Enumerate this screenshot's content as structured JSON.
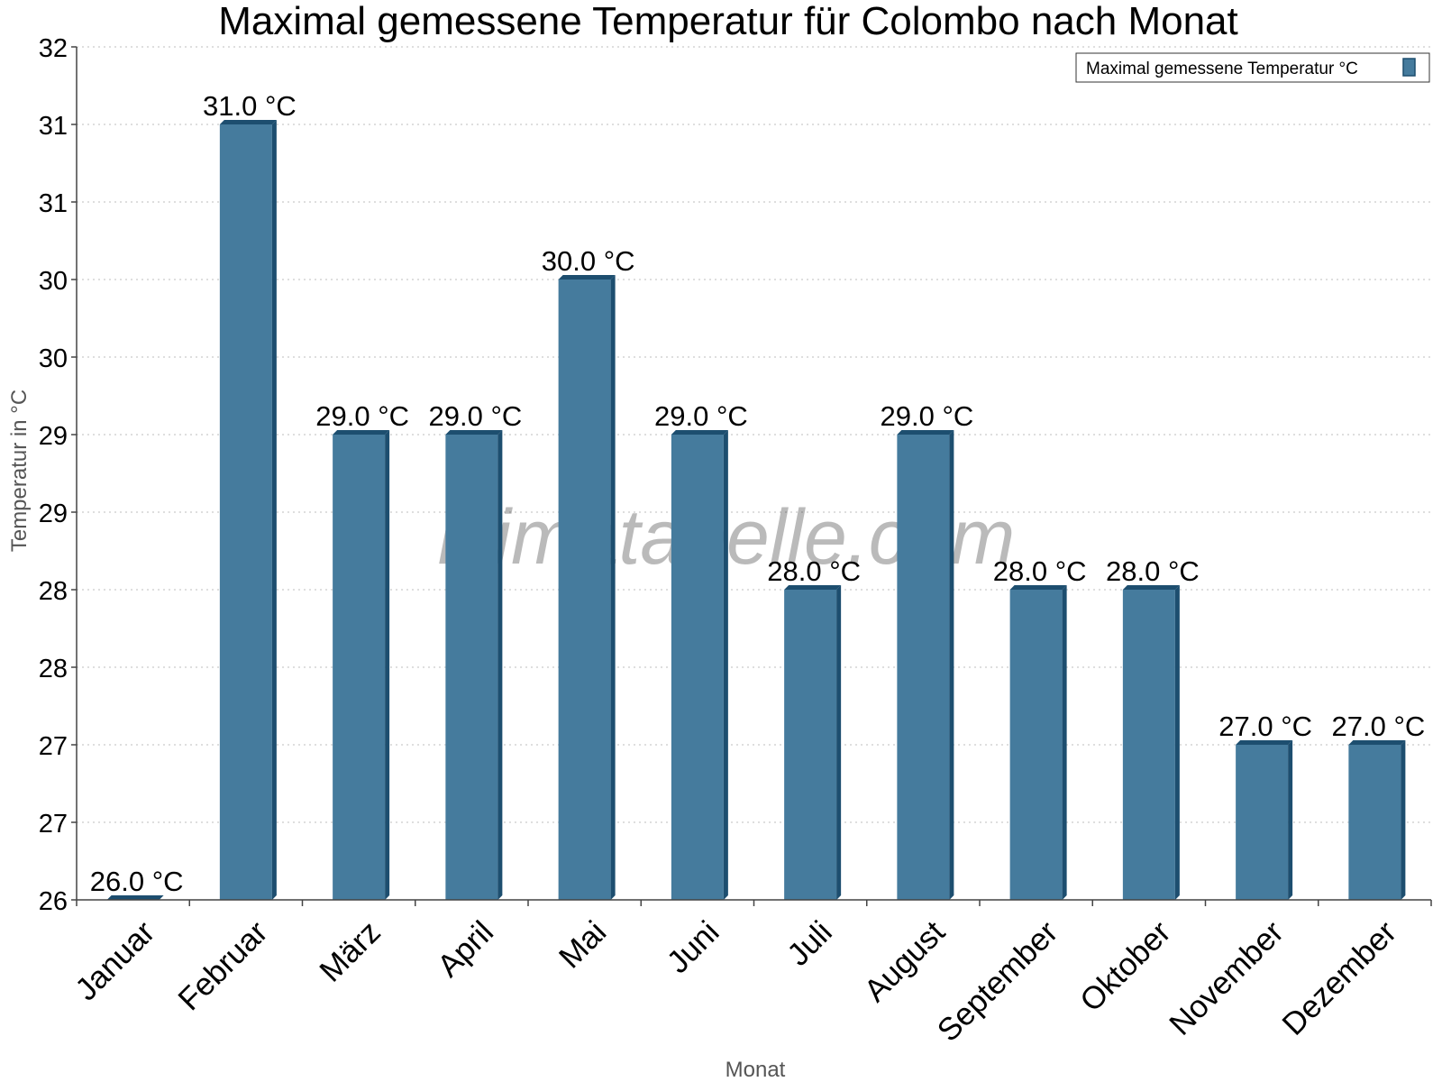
{
  "colors": {
    "bar_face": "#457b9d",
    "bar_side": "#1d4e6f",
    "bar_top": "#1d4e6f"
  },
  "chart_data": {
    "type": "bar",
    "title": "Maximal gemessene Temperatur für Colombo nach Monat",
    "xlabel": "Monat",
    "ylabel": "Temperatur in °C",
    "categories": [
      "Januar",
      "Februar",
      "März",
      "April",
      "Mai",
      "Juni",
      "Juli",
      "August",
      "September",
      "Oktober",
      "November",
      "Dezember"
    ],
    "series": [
      {
        "name": "Maximal gemessene Temperatur °C",
        "values": [
          26,
          31,
          29,
          29,
          30,
          29,
          28,
          29,
          28,
          28,
          27,
          27
        ],
        "labels": [
          "26.0 °C",
          "31.0 °C",
          "29.0 °C",
          "29.0 °C",
          "30.0 °C",
          "29.0 °C",
          "28.0 °C",
          "29.0 °C",
          "28.0 °C",
          "28.0 °C",
          "27.0 °C",
          "27.0 °C"
        ]
      }
    ],
    "ylim": [
      26,
      31.5
    ],
    "yticks": [
      26,
      26.5,
      27,
      27.5,
      28,
      28.5,
      29,
      29.5,
      30,
      30.5,
      31,
      31.5
    ],
    "ytick_labels": [
      "26",
      "27",
      "27",
      "28",
      "28",
      "29",
      "29",
      "30",
      "30",
      "31",
      "31",
      "32"
    ],
    "grid": true,
    "legend": {
      "position": "top-right",
      "label": "Maximal gemessene Temperatur °C"
    },
    "watermark": "klimatabelle.com"
  }
}
